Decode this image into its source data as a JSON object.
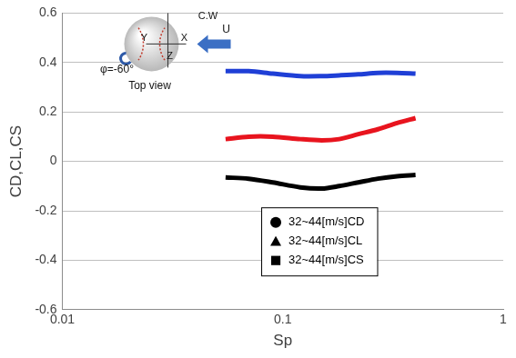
{
  "chart_data": {
    "type": "line",
    "x_label": "Sp",
    "y_label": "CD,CL,CS",
    "log": "x",
    "grid": "y",
    "legend": "bottom",
    "xlim": [
      0.01,
      1
    ],
    "xticks": [
      0.01,
      0.1,
      1
    ],
    "ylim": [
      -0.6,
      0.6
    ],
    "yticks": [
      -0.6,
      -0.4,
      -0.2,
      0,
      0.2,
      0.4,
      0.6
    ],
    "x": [
      0.055,
      0.07,
      0.09,
      0.12,
      0.15,
      0.18,
      0.22,
      0.27,
      0.33,
      0.4
    ],
    "series": [
      {
        "name": "32~44[m/s]CD",
        "color": "#1f3fd6",
        "marker": "circle",
        "values": [
          0.365,
          0.365,
          0.355,
          0.345,
          0.345,
          0.348,
          0.352,
          0.358,
          0.358,
          0.355
        ]
      },
      {
        "name": "32~44[m/s]CL",
        "color": "#e8141e",
        "marker": "triangle",
        "values": [
          0.09,
          0.1,
          0.1,
          0.09,
          0.085,
          0.09,
          0.11,
          0.13,
          0.155,
          0.175
        ]
      },
      {
        "name": "32~44[m/s]CS",
        "color": "#000000",
        "marker": "square",
        "values": [
          -0.065,
          -0.07,
          -0.085,
          -0.105,
          -0.11,
          -0.1,
          -0.085,
          -0.07,
          -0.06,
          -0.055
        ]
      }
    ],
    "annotations": [
      "C.W",
      "U",
      "X",
      "Y",
      "Z",
      "φ=-60°",
      "Top view"
    ]
  }
}
